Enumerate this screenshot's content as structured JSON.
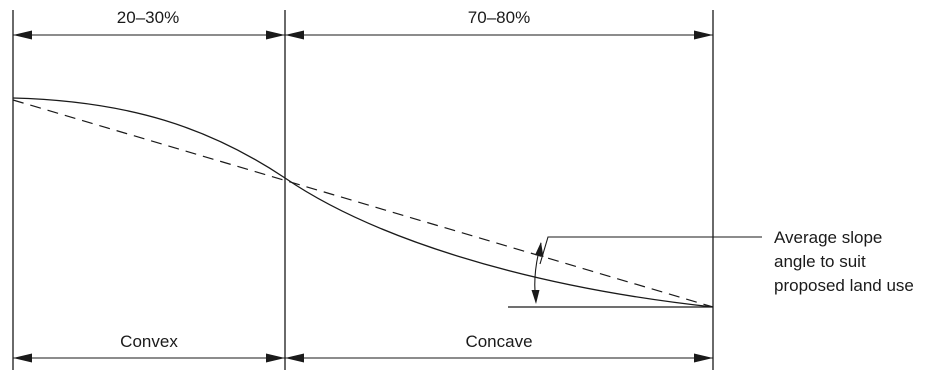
{
  "labels": {
    "top_left_range": "20–30%",
    "top_right_range": "70–80%",
    "bottom_left": "Convex",
    "bottom_right": "Concave",
    "annotation_line1": "Average slope",
    "annotation_line2": "angle to suit",
    "annotation_line3": "proposed land use"
  }
}
